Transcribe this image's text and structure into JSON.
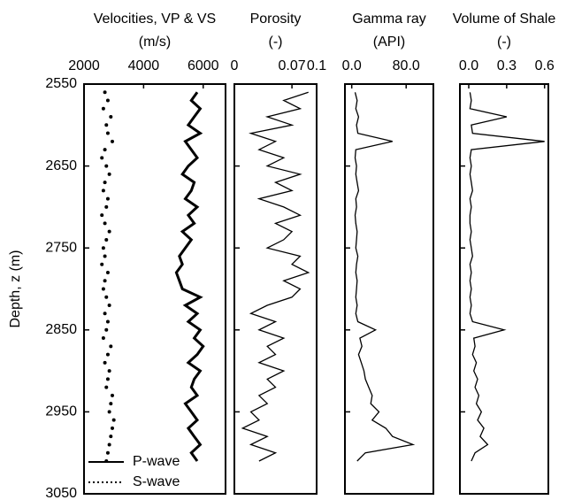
{
  "chart_data": [
    {
      "type": "line",
      "title": "Velocities, VP & VS",
      "subtitle": "(m/s)",
      "y_label": "Depth, z (m)",
      "xlim": [
        2000,
        6750
      ],
      "xticks": [
        2000,
        4000,
        6000
      ],
      "ylim": [
        2550,
        3050
      ],
      "yticks": [
        2550,
        2650,
        2750,
        2850,
        2950,
        3050
      ],
      "legend": "lower left",
      "y": [
        2560,
        2570,
        2580,
        2590,
        2600,
        2610,
        2620,
        2630,
        2640,
        2650,
        2660,
        2670,
        2680,
        2690,
        2700,
        2710,
        2720,
        2730,
        2740,
        2750,
        2760,
        2770,
        2780,
        2790,
        2800,
        2810,
        2820,
        2830,
        2840,
        2850,
        2860,
        2870,
        2880,
        2890,
        2900,
        2910,
        2920,
        2930,
        2940,
        2950,
        2960,
        2970,
        2980,
        2990,
        3000,
        3010
      ],
      "series": [
        {
          "name": "P-wave",
          "color": "#000000",
          "style": "solid",
          "values": [
            5800,
            5600,
            5900,
            5700,
            5500,
            5900,
            5400,
            5600,
            5800,
            5500,
            5300,
            5700,
            5600,
            5400,
            5800,
            5500,
            5700,
            5300,
            5600,
            5400,
            5200,
            5300,
            5100,
            5200,
            5300,
            5900,
            5400,
            5800,
            5500,
            5900,
            5700,
            6000,
            5800,
            5500,
            5900,
            5700,
            5600,
            5800,
            5400,
            5600,
            5800,
            5500,
            5700,
            5900,
            5600,
            5800
          ]
        },
        {
          "name": "S-wave",
          "color": "#000000",
          "style": "dotted",
          "values": [
            2700,
            2800,
            2650,
            2900,
            2750,
            2800,
            2950,
            2700,
            2600,
            2750,
            2850,
            2700,
            2650,
            2800,
            2750,
            2600,
            2700,
            2850,
            2750,
            2650,
            2700,
            2600,
            2800,
            2700,
            2650,
            2750,
            2850,
            2700,
            2800,
            2750,
            2650,
            2900,
            2800,
            2700,
            2850,
            2800,
            2750,
            2950,
            2900,
            2850,
            3000,
            2950,
            2900,
            2850,
            2800,
            2750
          ]
        }
      ]
    },
    {
      "type": "line",
      "title": "Porosity",
      "subtitle": "(-)",
      "xlim": [
        0,
        0.1
      ],
      "xticks": [
        0,
        0.07,
        0.1
      ],
      "ylim": [
        2550,
        3050
      ],
      "y": [
        2560,
        2570,
        2580,
        2590,
        2600,
        2610,
        2620,
        2630,
        2640,
        2650,
        2660,
        2670,
        2680,
        2690,
        2700,
        2710,
        2720,
        2730,
        2740,
        2750,
        2760,
        2770,
        2780,
        2790,
        2800,
        2810,
        2820,
        2830,
        2840,
        2850,
        2860,
        2870,
        2880,
        2890,
        2900,
        2910,
        2920,
        2930,
        2940,
        2950,
        2960,
        2970,
        2980,
        2990,
        3000,
        3010
      ],
      "series": [
        {
          "name": "Porosity",
          "color": "#000000",
          "style": "solid",
          "values": [
            0.09,
            0.06,
            0.08,
            0.04,
            0.07,
            0.02,
            0.05,
            0.03,
            0.06,
            0.04,
            0.08,
            0.05,
            0.07,
            0.03,
            0.06,
            0.08,
            0.05,
            0.07,
            0.06,
            0.04,
            0.08,
            0.07,
            0.09,
            0.06,
            0.08,
            0.07,
            0.04,
            0.02,
            0.05,
            0.03,
            0.06,
            0.04,
            0.05,
            0.03,
            0.06,
            0.04,
            0.05,
            0.03,
            0.04,
            0.02,
            0.03,
            0.01,
            0.04,
            0.02,
            0.05,
            0.03
          ]
        }
      ]
    },
    {
      "type": "line",
      "title": "Gamma ray",
      "subtitle": "(API)",
      "xlim": [
        -10,
        120
      ],
      "xticks": [
        {
          "value": 0,
          "label": "0.0"
        },
        {
          "value": 80,
          "label": "80.0"
        }
      ],
      "ylim": [
        2550,
        3050
      ],
      "y": [
        2560,
        2570,
        2580,
        2590,
        2600,
        2610,
        2620,
        2630,
        2640,
        2650,
        2660,
        2670,
        2680,
        2690,
        2700,
        2710,
        2720,
        2730,
        2740,
        2750,
        2760,
        2770,
        2780,
        2790,
        2800,
        2810,
        2820,
        2830,
        2840,
        2850,
        2860,
        2870,
        2880,
        2890,
        2900,
        2910,
        2920,
        2930,
        2940,
        2950,
        2960,
        2970,
        2980,
        2990,
        3000,
        3010
      ],
      "series": [
        {
          "name": "Gamma ray",
          "color": "#000000",
          "style": "solid",
          "values": [
            5,
            8,
            6,
            10,
            7,
            9,
            60,
            6,
            5,
            7,
            6,
            8,
            10,
            6,
            7,
            5,
            6,
            8,
            7,
            6,
            9,
            7,
            6,
            8,
            7,
            6,
            8,
            6,
            9,
            35,
            12,
            15,
            10,
            14,
            18,
            20,
            25,
            30,
            28,
            40,
            30,
            50,
            60,
            90,
            20,
            8
          ]
        }
      ]
    },
    {
      "type": "line",
      "title": "Volume of Shale",
      "subtitle": "(-)",
      "xlim": [
        -0.07,
        0.63
      ],
      "xticks": [
        {
          "value": 0,
          "label": "0.0"
        },
        0.3,
        0.6
      ],
      "ylim": [
        2550,
        3050
      ],
      "y": [
        2560,
        2570,
        2580,
        2590,
        2600,
        2610,
        2620,
        2630,
        2640,
        2650,
        2660,
        2670,
        2680,
        2690,
        2700,
        2710,
        2720,
        2730,
        2740,
        2750,
        2760,
        2770,
        2780,
        2790,
        2800,
        2810,
        2820,
        2830,
        2840,
        2850,
        2860,
        2870,
        2880,
        2890,
        2900,
        2910,
        2920,
        2930,
        2940,
        2950,
        2960,
        2970,
        2980,
        2990,
        3000,
        3010
      ],
      "series": [
        {
          "name": "Volume of Shale",
          "color": "#000000",
          "style": "solid",
          "values": [
            0.01,
            0.02,
            0.01,
            0.3,
            0.02,
            0.03,
            0.6,
            0.02,
            0.01,
            0.02,
            0.01,
            0.02,
            0.03,
            0.01,
            0.02,
            0.01,
            0.01,
            0.02,
            0.01,
            0.02,
            0.03,
            0.01,
            0.02,
            0.01,
            0.02,
            0.01,
            0.02,
            0.01,
            0.03,
            0.28,
            0.04,
            0.05,
            0.03,
            0.06,
            0.04,
            0.07,
            0.05,
            0.08,
            0.06,
            0.1,
            0.07,
            0.12,
            0.09,
            0.15,
            0.05,
            0.02
          ]
        }
      ]
    }
  ]
}
